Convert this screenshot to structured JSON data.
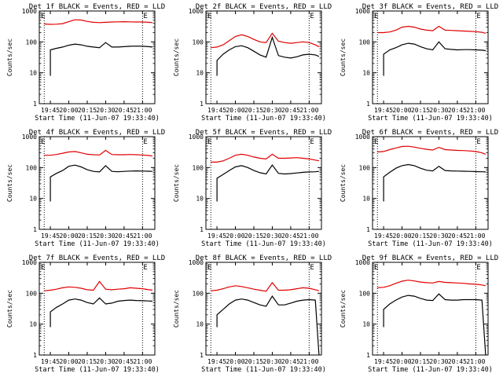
{
  "figure": {
    "colors": {
      "events": "#000000",
      "lld": "#e00000",
      "axis": "#000000"
    }
  },
  "chart_data": [
    {
      "type": "line",
      "title": "Det 1f BLACK = Events, RED = LLD",
      "xlabel": "Start Time (11-Jun-07 19:33:40)",
      "ylabel": "Counts/sec",
      "y_scale": "log",
      "ylim": [
        1,
        1000
      ],
      "xlim": [
        "19:36",
        "21:10"
      ],
      "x_ticks": [
        "19:45",
        "20:00",
        "20:15",
        "20:30",
        "20:45",
        "21:00"
      ],
      "y_ticks": [
        "1",
        "10",
        "100",
        "1000"
      ],
      "markers": [
        "19:40",
        "21:00"
      ],
      "corner_labels": [
        "E",
        "E"
      ],
      "grid": true,
      "x": [
        "19:40",
        "19:45",
        "19:50",
        "19:55",
        "20:00",
        "20:05",
        "20:10",
        "20:15",
        "20:20",
        "20:25",
        "20:30",
        "20:35",
        "20:40",
        "20:45",
        "20:50",
        "20:55",
        "21:00",
        "21:05",
        "21:08"
      ],
      "series": [
        {
          "values": [
            380,
            370,
            375,
            390,
            450,
            520,
            510,
            460,
            430,
            420,
            430,
            440,
            445,
            450,
            445,
            440,
            440,
            430,
            420
          ]
        },
        {
          "values": [
            null,
            55,
            62,
            68,
            78,
            85,
            80,
            72,
            68,
            65,
            95,
            68,
            68,
            70,
            72,
            73,
            72,
            70,
            68
          ]
        }
      ]
    },
    {
      "type": "line",
      "title": "Det 2f BLACK = Events, RED = LLD",
      "xlabel": "Start Time (11-Jun-07 19:33:40)",
      "ylabel": "Counts/sec",
      "y_scale": "log",
      "ylim": [
        1,
        1000
      ],
      "xlim": [
        "19:36",
        "21:10"
      ],
      "x_ticks": [
        "19:45",
        "20:00",
        "20:15",
        "20:30",
        "20:45",
        "21:00"
      ],
      "y_ticks": [
        "1",
        "10",
        "100",
        "1000"
      ],
      "markers": [
        "19:40",
        "21:00"
      ],
      "corner_labels": [
        "E",
        "E"
      ],
      "grid": true,
      "x": [
        "19:40",
        "19:45",
        "19:50",
        "19:55",
        "20:00",
        "20:05",
        "20:10",
        "20:15",
        "20:20",
        "20:25",
        "20:30",
        "20:35",
        "20:40",
        "20:45",
        "20:50",
        "20:55",
        "21:00",
        "21:05",
        "21:08"
      ],
      "series": [
        {
          "values": [
            65,
            68,
            80,
            110,
            150,
            170,
            150,
            120,
            100,
            95,
            190,
            105,
            95,
            90,
            95,
            100,
            95,
            80,
            70
          ]
        },
        {
          "values": [
            null,
            25,
            40,
            55,
            70,
            75,
            65,
            50,
            38,
            32,
            140,
            36,
            32,
            30,
            33,
            38,
            40,
            38,
            34
          ]
        }
      ]
    },
    {
      "type": "line",
      "title": "Det 3f BLACK = Events, RED = LLD",
      "xlabel": "Start Time (11-Jun-07 19:33:40)",
      "ylabel": "Counts/sec",
      "y_scale": "log",
      "ylim": [
        1,
        1000
      ],
      "xlim": [
        "19:36",
        "21:10"
      ],
      "x_ticks": [
        "19:45",
        "20:00",
        "20:15",
        "20:30",
        "20:45",
        "21:00"
      ],
      "y_ticks": [
        "1",
        "10",
        "100",
        "1000"
      ],
      "markers": [
        "19:40",
        "21:00"
      ],
      "corner_labels": [
        "E",
        "E"
      ],
      "grid": true,
      "x": [
        "19:40",
        "19:45",
        "19:50",
        "19:55",
        "20:00",
        "20:05",
        "20:10",
        "20:15",
        "20:20",
        "20:25",
        "20:30",
        "20:35",
        "20:40",
        "20:45",
        "20:50",
        "20:55",
        "21:00",
        "21:05",
        "21:08"
      ],
      "series": [
        {
          "values": [
            200,
            200,
            210,
            240,
            300,
            320,
            300,
            260,
            240,
            230,
            320,
            240,
            235,
            230,
            225,
            220,
            215,
            205,
            190
          ]
        },
        {
          "values": [
            null,
            40,
            55,
            65,
            80,
            90,
            85,
            70,
            60,
            55,
            100,
            60,
            57,
            55,
            56,
            56,
            55,
            54,
            52
          ]
        }
      ]
    },
    {
      "type": "line",
      "title": "Det 4f BLACK = Events, RED = LLD",
      "xlabel": "Start Time (11-Jun-07 19:33:40)",
      "ylabel": "Counts/sec",
      "y_scale": "log",
      "ylim": [
        1,
        1000
      ],
      "xlim": [
        "19:36",
        "21:10"
      ],
      "x_ticks": [
        "19:45",
        "20:00",
        "20:15",
        "20:30",
        "20:45",
        "21:00"
      ],
      "y_ticks": [
        "1",
        "10",
        "100",
        "1000"
      ],
      "markers": [
        "19:40",
        "21:00"
      ],
      "corner_labels": [
        "E",
        "E"
      ],
      "grid": true,
      "x": [
        "19:40",
        "19:45",
        "19:50",
        "19:55",
        "20:00",
        "20:05",
        "20:10",
        "20:15",
        "20:20",
        "20:25",
        "20:30",
        "20:35",
        "20:40",
        "20:45",
        "20:50",
        "20:55",
        "21:00",
        "21:05",
        "21:08"
      ],
      "series": [
        {
          "values": [
            250,
            250,
            265,
            290,
            320,
            330,
            300,
            270,
            260,
            255,
            360,
            265,
            260,
            260,
            265,
            260,
            255,
            245,
            235
          ]
        },
        {
          "values": [
            null,
            50,
            65,
            80,
            110,
            120,
            105,
            85,
            75,
            72,
            115,
            75,
            73,
            75,
            77,
            78,
            77,
            76,
            75
          ]
        }
      ]
    },
    {
      "type": "line",
      "title": "Det 5f BLACK = Events, RED = LLD",
      "xlabel": "Start Time (11-Jun-07 19:33:40)",
      "ylabel": "Counts/sec",
      "y_scale": "log",
      "ylim": [
        1,
        1000
      ],
      "xlim": [
        "19:36",
        "21:10"
      ],
      "x_ticks": [
        "19:45",
        "20:00",
        "20:15",
        "20:30",
        "20:45",
        "21:00"
      ],
      "y_ticks": [
        "1",
        "10",
        "100",
        "1000"
      ],
      "markers": [
        "19:40",
        "21:00"
      ],
      "corner_labels": [
        "E",
        "E"
      ],
      "grid": true,
      "x": [
        "19:40",
        "19:45",
        "19:50",
        "19:55",
        "20:00",
        "20:05",
        "20:10",
        "20:15",
        "20:20",
        "20:25",
        "20:30",
        "20:35",
        "20:40",
        "20:45",
        "20:50",
        "20:55",
        "21:00",
        "21:05",
        "21:08"
      ],
      "series": [
        {
          "values": [
            150,
            150,
            165,
            200,
            250,
            270,
            250,
            220,
            200,
            190,
            270,
            200,
            200,
            205,
            210,
            200,
            190,
            175,
            165
          ]
        },
        {
          "values": [
            null,
            45,
            60,
            80,
            105,
            115,
            100,
            80,
            68,
            62,
            120,
            65,
            62,
            64,
            67,
            70,
            72,
            73,
            75
          ]
        }
      ]
    },
    {
      "type": "line",
      "title": "Det 6f BLACK = Events, RED = LLD",
      "xlabel": "Start Time (11-Jun-07 19:33:40)",
      "ylabel": "Counts/sec",
      "y_scale": "log",
      "ylim": [
        1,
        1000
      ],
      "xlim": [
        "19:36",
        "21:10"
      ],
      "x_ticks": [
        "19:45",
        "20:00",
        "20:15",
        "20:30",
        "20:45",
        "21:00"
      ],
      "y_ticks": [
        "1",
        "10",
        "100",
        "1000"
      ],
      "markers": [
        "19:40",
        "21:00"
      ],
      "corner_labels": [
        "E",
        "E"
      ],
      "grid": true,
      "x": [
        "19:40",
        "19:45",
        "19:50",
        "19:55",
        "20:00",
        "20:05",
        "20:10",
        "20:15",
        "20:20",
        "20:25",
        "20:30",
        "20:35",
        "20:40",
        "20:45",
        "20:50",
        "20:55",
        "21:00",
        "21:05",
        "21:08"
      ],
      "series": [
        {
          "values": [
            320,
            330,
            380,
            430,
            480,
            490,
            460,
            420,
            390,
            370,
            450,
            380,
            370,
            360,
            355,
            345,
            330,
            300,
            270
          ]
        },
        {
          "values": [
            null,
            50,
            70,
            95,
            115,
            125,
            115,
            95,
            82,
            78,
            110,
            80,
            78,
            77,
            76,
            75,
            74,
            73,
            72
          ]
        }
      ]
    },
    {
      "type": "line",
      "title": "Det 7f BLACK = Events, RED = LLD",
      "xlabel": "Start Time (11-Jun-07 19:33:40)",
      "ylabel": "Counts/sec",
      "y_scale": "log",
      "ylim": [
        1,
        1000
      ],
      "xlim": [
        "19:36",
        "21:10"
      ],
      "x_ticks": [
        "19:45",
        "20:00",
        "20:15",
        "20:30",
        "20:45",
        "21:00"
      ],
      "y_ticks": [
        "1",
        "10",
        "100",
        "1000"
      ],
      "markers": [
        "19:40",
        "21:00"
      ],
      "corner_labels": [
        "E",
        "E"
      ],
      "grid": true,
      "x": [
        "19:40",
        "19:45",
        "19:50",
        "19:55",
        "20:00",
        "20:05",
        "20:10",
        "20:15",
        "20:20",
        "20:25",
        "20:30",
        "20:35",
        "20:40",
        "20:45",
        "20:50",
        "20:55",
        "21:00",
        "21:05",
        "21:08"
      ],
      "series": [
        {
          "values": [
            120,
            125,
            135,
            150,
            160,
            155,
            145,
            130,
            125,
            240,
            135,
            130,
            135,
            140,
            150,
            145,
            140,
            130,
            125
          ]
        },
        {
          "values": [
            null,
            25,
            35,
            45,
            60,
            65,
            60,
            50,
            45,
            70,
            45,
            48,
            55,
            58,
            60,
            58,
            57,
            56,
            55
          ]
        }
      ]
    },
    {
      "type": "line",
      "title": "Det 8f BLACK = Events, RED = LLD",
      "xlabel": "Start Time (11-Jun-07 19:33:40)",
      "ylabel": "Counts/sec",
      "y_scale": "log",
      "ylim": [
        1,
        1000
      ],
      "xlim": [
        "19:36",
        "21:10"
      ],
      "x_ticks": [
        "19:45",
        "20:00",
        "20:15",
        "20:30",
        "20:45",
        "21:00"
      ],
      "y_ticks": [
        "1",
        "10",
        "100",
        "1000"
      ],
      "markers": [
        "19:40",
        "21:00"
      ],
      "corner_labels": [
        "E",
        "E"
      ],
      "grid": true,
      "x": [
        "19:40",
        "19:45",
        "19:50",
        "19:55",
        "20:00",
        "20:05",
        "20:10",
        "20:15",
        "20:20",
        "20:25",
        "20:30",
        "20:35",
        "20:40",
        "20:45",
        "20:50",
        "20:55",
        "21:00",
        "21:05",
        "21:08"
      ],
      "series": [
        {
          "values": [
            120,
            125,
            140,
            160,
            175,
            165,
            150,
            135,
            125,
            115,
            220,
            125,
            125,
            130,
            140,
            150,
            145,
            130,
            120
          ]
        },
        {
          "values": [
            null,
            20,
            30,
            45,
            60,
            65,
            60,
            50,
            42,
            38,
            80,
            42,
            42,
            48,
            55,
            60,
            62,
            60,
            1
          ]
        }
      ]
    },
    {
      "type": "line",
      "title": "Det 9f BLACK = Events, RED = LLD",
      "xlabel": "Start Time (11-Jun-07 19:33:40)",
      "ylabel": "Counts/sec",
      "y_scale": "log",
      "ylim": [
        1,
        1000
      ],
      "xlim": [
        "19:36",
        "21:10"
      ],
      "x_ticks": [
        "19:45",
        "20:00",
        "20:15",
        "20:30",
        "20:45",
        "21:00"
      ],
      "y_ticks": [
        "1",
        "10",
        "100",
        "1000"
      ],
      "markers": [
        "19:40",
        "21:00"
      ],
      "corner_labels": [
        "E",
        "E"
      ],
      "grid": true,
      "x": [
        "19:40",
        "19:45",
        "19:50",
        "19:55",
        "20:00",
        "20:05",
        "20:10",
        "20:15",
        "20:20",
        "20:25",
        "20:30",
        "20:35",
        "20:40",
        "20:45",
        "20:50",
        "20:55",
        "21:00",
        "21:05",
        "21:08"
      ],
      "series": [
        {
          "values": [
            150,
            155,
            175,
            210,
            245,
            265,
            250,
            230,
            220,
            215,
            240,
            225,
            220,
            215,
            210,
            200,
            195,
            185,
            175
          ]
        },
        {
          "values": [
            null,
            30,
            45,
            60,
            75,
            85,
            80,
            68,
            60,
            58,
            95,
            62,
            60,
            60,
            62,
            62,
            62,
            60,
            1
          ]
        }
      ]
    }
  ]
}
